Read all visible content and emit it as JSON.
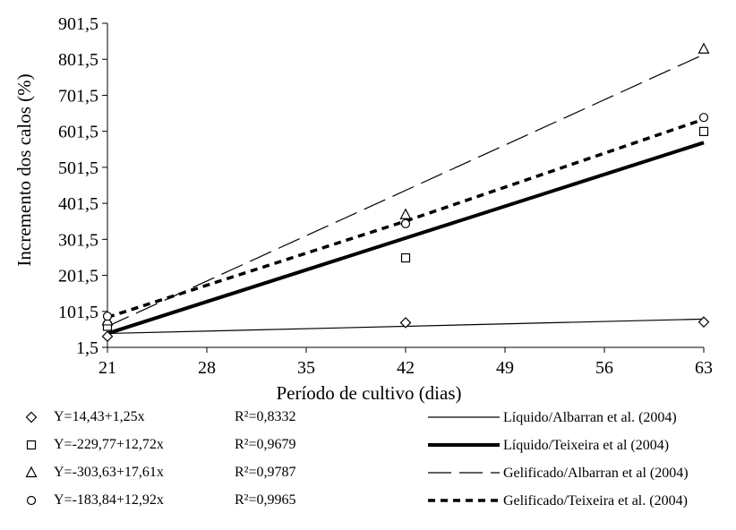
{
  "chart_data": {
    "type": "scatter",
    "title": "",
    "xlabel": "Período de cultivo (dias)",
    "ylabel": "Incremento dos calos (%)",
    "x_ticks": [
      21,
      28,
      35,
      42,
      49,
      56,
      63
    ],
    "y_ticks": [
      1.5,
      101.5,
      201.5,
      301.5,
      401.5,
      501.5,
      601.5,
      701.5,
      801.5,
      901.5
    ],
    "y_tick_labels": [
      "1,5",
      "101,5",
      "201,5",
      "301,5",
      "401,5",
      "501,5",
      "601,5",
      "701,5",
      "801,5",
      "901,5"
    ],
    "xlim": [
      21,
      63
    ],
    "ylim": [
      1.5,
      901.5
    ],
    "grid": false,
    "series": [
      {
        "marker": "diamond",
        "equation": "Y=14,43+1,25x",
        "r2": "R²=0,8332",
        "points": [
          [
            21,
            32
          ],
          [
            42,
            70
          ],
          [
            63,
            72
          ]
        ]
      },
      {
        "marker": "square",
        "equation": "Y=-229,77+12,72x",
        "r2": "R²=0,9679",
        "points": [
          [
            21,
            60
          ],
          [
            42,
            250
          ],
          [
            63,
            601
          ]
        ]
      },
      {
        "marker": "triangle",
        "equation": "Y=-303,63+17,61x",
        "r2": "R²=0,9787",
        "points": [
          [
            21,
            75
          ],
          [
            42,
            370
          ],
          [
            63,
            830
          ]
        ]
      },
      {
        "marker": "circle",
        "equation": "Y=-183,84+12,92x",
        "r2": "R²=0,9965",
        "points": [
          [
            21,
            88
          ],
          [
            42,
            345
          ],
          [
            63,
            640
          ]
        ]
      }
    ],
    "lines": [
      {
        "name": "Líquido/Albarran et al. (2004)",
        "style": "thin-solid",
        "endpoints": [
          [
            21,
            40
          ],
          [
            63,
            80
          ]
        ]
      },
      {
        "name": "Líquido/Teixeira et al (2004)",
        "style": "thick-solid",
        "endpoints": [
          [
            21,
            40
          ],
          [
            63,
            570
          ]
        ]
      },
      {
        "name": "Gelificado/Albarran et al (2004)",
        "style": "thin-dashed",
        "endpoints": [
          [
            21,
            60
          ],
          [
            63,
            815
          ]
        ]
      },
      {
        "name": "Gelificado/Teixeira et al. (2004)",
        "style": "thick-dotted",
        "points": [
          [
            21,
            85
          ],
          [
            42,
            352
          ],
          [
            63,
            635
          ]
        ]
      }
    ],
    "legend_placement": "bottom"
  }
}
